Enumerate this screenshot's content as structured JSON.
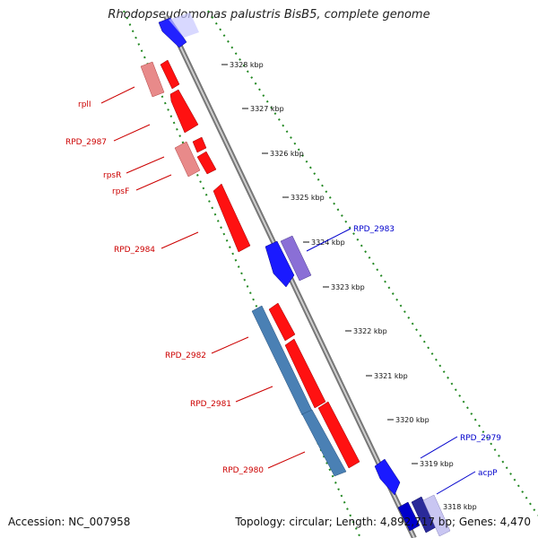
{
  "title": "Rhodopseudomonas palustris BisB5, complete genome",
  "footer": {
    "accession": "Accession: NC_007958",
    "summary": "Topology: circular; Length: 4,892,717 bp; Genes: 4,470"
  },
  "colors": {
    "forward": "#ff0000",
    "forward_light": "#e88a8a",
    "reverse": "#0000ff",
    "reverse_light": "#8a6fd6",
    "other": "#4a80b4",
    "backbone": "#888888",
    "track_dots": "#228822",
    "forward_label": "#cc0000",
    "reverse_label": "#0000cc"
  },
  "scale_ticks": [
    "3328 kbp",
    "3327 kbp",
    "3326 kbp",
    "3325 kbp",
    "3324 kbp",
    "3323 kbp",
    "3322 kbp",
    "3321 kbp",
    "3320 kbp",
    "3319 kbp",
    "3318 kbp"
  ],
  "gene_labels": {
    "rpll": "rplI",
    "rpd2987": "RPD_2987",
    "rpsr": "rpsR",
    "rpsf": "rpsF",
    "rpd2984": "RPD_2984",
    "rpd2983": "RPD_2983",
    "rpd2982": "RPD_2982",
    "rpd2981": "RPD_2981",
    "rpd2980": "RPD_2980",
    "rpd2979": "RPD_2979",
    "acpp": "acpP"
  }
}
